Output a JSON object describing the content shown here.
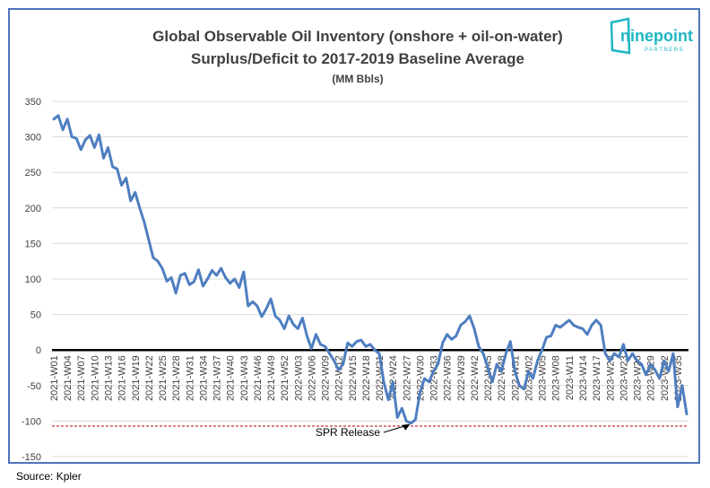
{
  "source_note": "Source: Kpler",
  "logo": {
    "text": "ninepoint",
    "subtext": "PARTNERS",
    "color": "#1fb6c2"
  },
  "chart_data": {
    "type": "line",
    "title": "Global Observable Oil Inventory (onshore + oil-on-water)",
    "subtitle": "Surplus/Deficit to 2017-2019 Baseline Average",
    "units": "(MM Bbls)",
    "xlabel": "",
    "ylabel": "",
    "ylim": [
      -150,
      350
    ],
    "yticks": [
      350,
      300,
      250,
      200,
      150,
      100,
      50,
      0,
      -50,
      -100,
      -150
    ],
    "grid": true,
    "legend": "none",
    "line_color": "#4e7ec0",
    "zero_line_color": "#000000",
    "x_tick_labels": [
      "2021-W01",
      "2021-W04",
      "2021-W07",
      "2021-W10",
      "2021-W13",
      "2021-W16",
      "2021-W19",
      "2021-W22",
      "2021-W25",
      "2021-W28",
      "2021-W31",
      "2021-W34",
      "2021-W37",
      "2021-W40",
      "2021-W43",
      "2021-W46",
      "2021-W49",
      "2021-W52",
      "2022-W03",
      "2022-W06",
      "2022-W09",
      "2022-W12",
      "2022-W15",
      "2022-W18",
      "2022-W21",
      "2022-W24",
      "2022-W27",
      "2022-W30",
      "2022-W33",
      "2022-W36",
      "2022-W39",
      "2022-W42",
      "2022-W45",
      "2022-W48",
      "2022-W51",
      "2023-W02",
      "2023-W05",
      "2023-W08",
      "2023-W11",
      "2023-W14",
      "2023-W17",
      "2023-W20",
      "2023-W23",
      "2023-W26",
      "2023-W29",
      "2023-W32",
      "2023-W35"
    ],
    "series": [
      {
        "values": [
          325,
          330,
          310,
          325,
          300,
          298,
          282,
          296,
          302,
          285,
          303,
          270,
          285,
          258,
          255,
          232,
          242,
          210,
          222,
          200,
          180,
          155,
          130,
          125,
          115,
          97,
          102,
          80,
          105,
          108,
          92,
          96,
          113,
          90,
          100,
          112,
          105,
          115,
          102,
          94,
          100,
          88,
          110,
          62,
          68,
          62,
          47,
          58,
          72,
          48,
          42,
          30,
          48,
          36,
          30,
          45,
          20,
          2,
          22,
          8,
          5,
          -5,
          -15,
          -28,
          -20,
          10,
          5,
          12,
          14,
          5,
          8,
          0,
          -5,
          -45,
          -70,
          -45,
          -95,
          -82,
          -100,
          -103,
          -98,
          -60,
          -40,
          -45,
          -30,
          -20,
          10,
          22,
          15,
          20,
          35,
          40,
          48,
          30,
          5,
          -5,
          -25,
          -45,
          -20,
          -30,
          -5,
          12,
          -30,
          -50,
          -55,
          -30,
          -40,
          -15,
          0,
          18,
          20,
          35,
          32,
          37,
          42,
          35,
          32,
          30,
          22,
          35,
          42,
          35,
          -5,
          -15,
          -5,
          -10,
          8,
          -15,
          -5,
          -15,
          -20,
          -35,
          -20,
          -28,
          -40,
          -15,
          -30,
          -5,
          -80,
          -50,
          -90
        ]
      }
    ],
    "reference_line": {
      "value": -107,
      "style": "dashed",
      "color": "#b80000"
    },
    "annotations": [
      {
        "text": "SPR Release",
        "x_index": 79,
        "y": -103
      }
    ]
  }
}
